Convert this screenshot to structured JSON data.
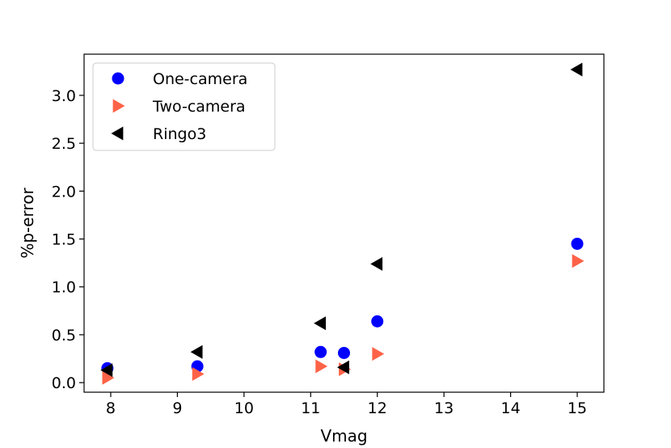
{
  "chart_data": {
    "type": "scatter",
    "xlabel": "Vmag",
    "ylabel": "%p-error",
    "xlim": [
      7.6,
      15.4
    ],
    "ylim": [
      -0.1,
      3.43
    ],
    "xticks": [
      8,
      9,
      10,
      11,
      12,
      13,
      14,
      15
    ],
    "yticks": [
      0.0,
      0.5,
      1.0,
      1.5,
      2.0,
      2.5,
      3.0
    ],
    "grid": false,
    "legend_position": "top-left",
    "series": [
      {
        "name": "One-camera",
        "marker": "circle",
        "color": "#0000ff",
        "points": [
          {
            "x": 7.95,
            "y": 0.15
          },
          {
            "x": 9.3,
            "y": 0.17
          },
          {
            "x": 11.15,
            "y": 0.32
          },
          {
            "x": 11.5,
            "y": 0.31
          },
          {
            "x": 12.0,
            "y": 0.64
          },
          {
            "x": 15.0,
            "y": 1.45
          }
        ]
      },
      {
        "name": "Two-camera",
        "marker": "triangle-right",
        "color": "#ff6347",
        "points": [
          {
            "x": 7.95,
            "y": 0.05
          },
          {
            "x": 9.3,
            "y": 0.09
          },
          {
            "x": 11.15,
            "y": 0.17
          },
          {
            "x": 11.5,
            "y": 0.14
          },
          {
            "x": 12.0,
            "y": 0.3
          },
          {
            "x": 15.0,
            "y": 1.27
          }
        ]
      },
      {
        "name": "Ringo3",
        "marker": "triangle-left",
        "color": "#000000",
        "points": [
          {
            "x": 7.95,
            "y": 0.13
          },
          {
            "x": 9.3,
            "y": 0.32
          },
          {
            "x": 11.15,
            "y": 0.62
          },
          {
            "x": 11.5,
            "y": 0.16
          },
          {
            "x": 12.0,
            "y": 1.24
          },
          {
            "x": 15.0,
            "y": 3.27
          }
        ]
      }
    ]
  }
}
